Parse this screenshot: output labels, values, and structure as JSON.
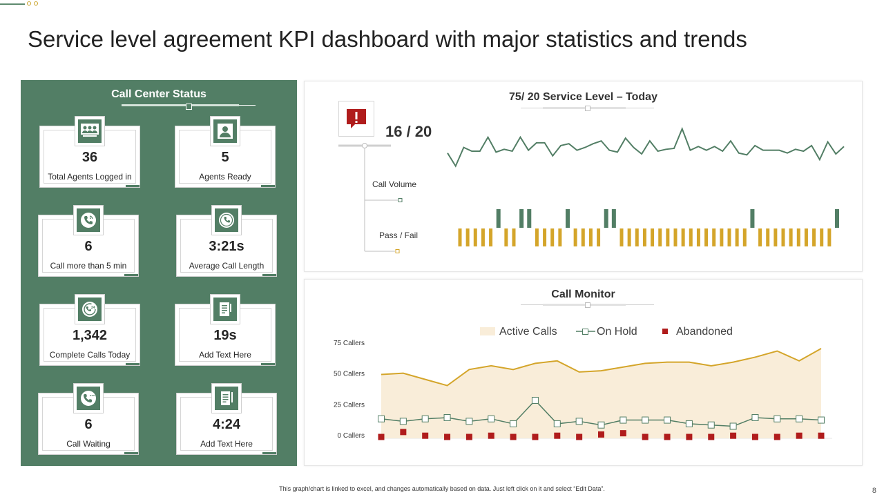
{
  "page": {
    "title": "Service level agreement KPI dashboard with major statistics and trends",
    "footer_note": "This graph/chart is linked to excel, and changes automatically based on data. Just left click on it and select “Edit Data”.",
    "page_number": "8"
  },
  "colors": {
    "green": "#527e65",
    "gold": "#d4a52a",
    "red": "#b01c1c",
    "fill": "#f9edd9"
  },
  "status_panel": {
    "title": "Call Center Status",
    "cards": [
      {
        "value": "36",
        "label": "Total Agents Logged in",
        "icon": "agents-group-icon"
      },
      {
        "value": "5",
        "label": "Agents Ready",
        "icon": "user-icon"
      },
      {
        "value": "6",
        "label": "Call more than 5 min",
        "icon": "phone-call-icon"
      },
      {
        "value": "3:21s",
        "label": "Average Call Length",
        "icon": "phone-clock-icon"
      },
      {
        "value": "1,342",
        "label": "Complete Calls Today",
        "icon": "phone-24-icon"
      },
      {
        "value": "19s",
        "label": "Add Text Here",
        "icon": "document-icon"
      },
      {
        "value": "6",
        "label": "Call Waiting",
        "icon": "phone-waiting-icon"
      },
      {
        "value": "4:24",
        "label": "Add Text Here",
        "icon": "document-pen-icon"
      }
    ]
  },
  "service_level": {
    "title": "75/ 20 Service Level – Today",
    "ratio": "16 / 20",
    "call_volume_label": "Call Volume",
    "pass_fail_label": "Pass / Fail"
  },
  "call_monitor": {
    "title": "Call  Monitor"
  },
  "chart_data": [
    {
      "type": "line",
      "title": "75/ 20 Service Level – Today",
      "name": "Call Volume",
      "ylim": [
        0,
        100
      ],
      "values": [
        58,
        44,
        64,
        60,
        60,
        75,
        59,
        62,
        60,
        75,
        61,
        69,
        69,
        55,
        66,
        68,
        61,
        64,
        68,
        71,
        61,
        59,
        74,
        64,
        57,
        71,
        60,
        62,
        63,
        84,
        61,
        65,
        61,
        65,
        60,
        71,
        58,
        56,
        66,
        61,
        61,
        61,
        58,
        62,
        60,
        66,
        51,
        70,
        57,
        65
      ]
    },
    {
      "type": "bar",
      "title": "Pass / Fail",
      "legend": [
        "Pass",
        "Fail"
      ],
      "values": [
        "fail",
        "fail",
        "fail",
        "fail",
        "fail",
        "pass",
        "fail",
        "fail",
        "pass",
        "pass",
        "fail",
        "fail",
        "fail",
        "fail",
        "pass",
        "fail",
        "fail",
        "fail",
        "fail",
        "pass",
        "pass",
        "fail",
        "fail",
        "fail",
        "fail",
        "fail",
        "fail",
        "fail",
        "fail",
        "fail",
        "fail",
        "fail",
        "fail",
        "fail",
        "fail",
        "fail",
        "fail",
        "fail",
        "pass",
        "fail",
        "fail",
        "fail",
        "fail",
        "fail",
        "fail",
        "fail",
        "fail",
        "fail",
        "fail",
        "pass"
      ]
    },
    {
      "type": "line",
      "title": "Call  Monitor",
      "legend": [
        "Active Calls",
        "On Hold",
        "Abandoned"
      ],
      "ylim": [
        0,
        75
      ],
      "yticks": [
        {
          "value": 0,
          "label": "0 Callers"
        },
        {
          "value": 25,
          "label": "25 Callers"
        },
        {
          "value": 50,
          "label": "50 Callers"
        },
        {
          "value": 75,
          "label": "75 Callers"
        }
      ],
      "series": [
        {
          "name": "Active Calls",
          "type": "area",
          "values": [
            49,
            50,
            45,
            40,
            53,
            56,
            53,
            58,
            60,
            51,
            52,
            55,
            58,
            59,
            59,
            56,
            59,
            63,
            68,
            60,
            70
          ]
        },
        {
          "name": "On Hold",
          "type": "line",
          "values": [
            13,
            11,
            13,
            14,
            11,
            13,
            9,
            28,
            9,
            11,
            8,
            12,
            12,
            12,
            9,
            8,
            7,
            14,
            13,
            13,
            12
          ]
        },
        {
          "name": "Abandoned",
          "type": "scatter",
          "values": [
            0,
            4,
            1,
            0,
            0,
            1,
            0,
            0,
            1,
            0,
            2,
            3,
            0,
            0,
            0,
            0,
            1,
            0,
            0,
            1,
            1
          ]
        }
      ]
    }
  ]
}
